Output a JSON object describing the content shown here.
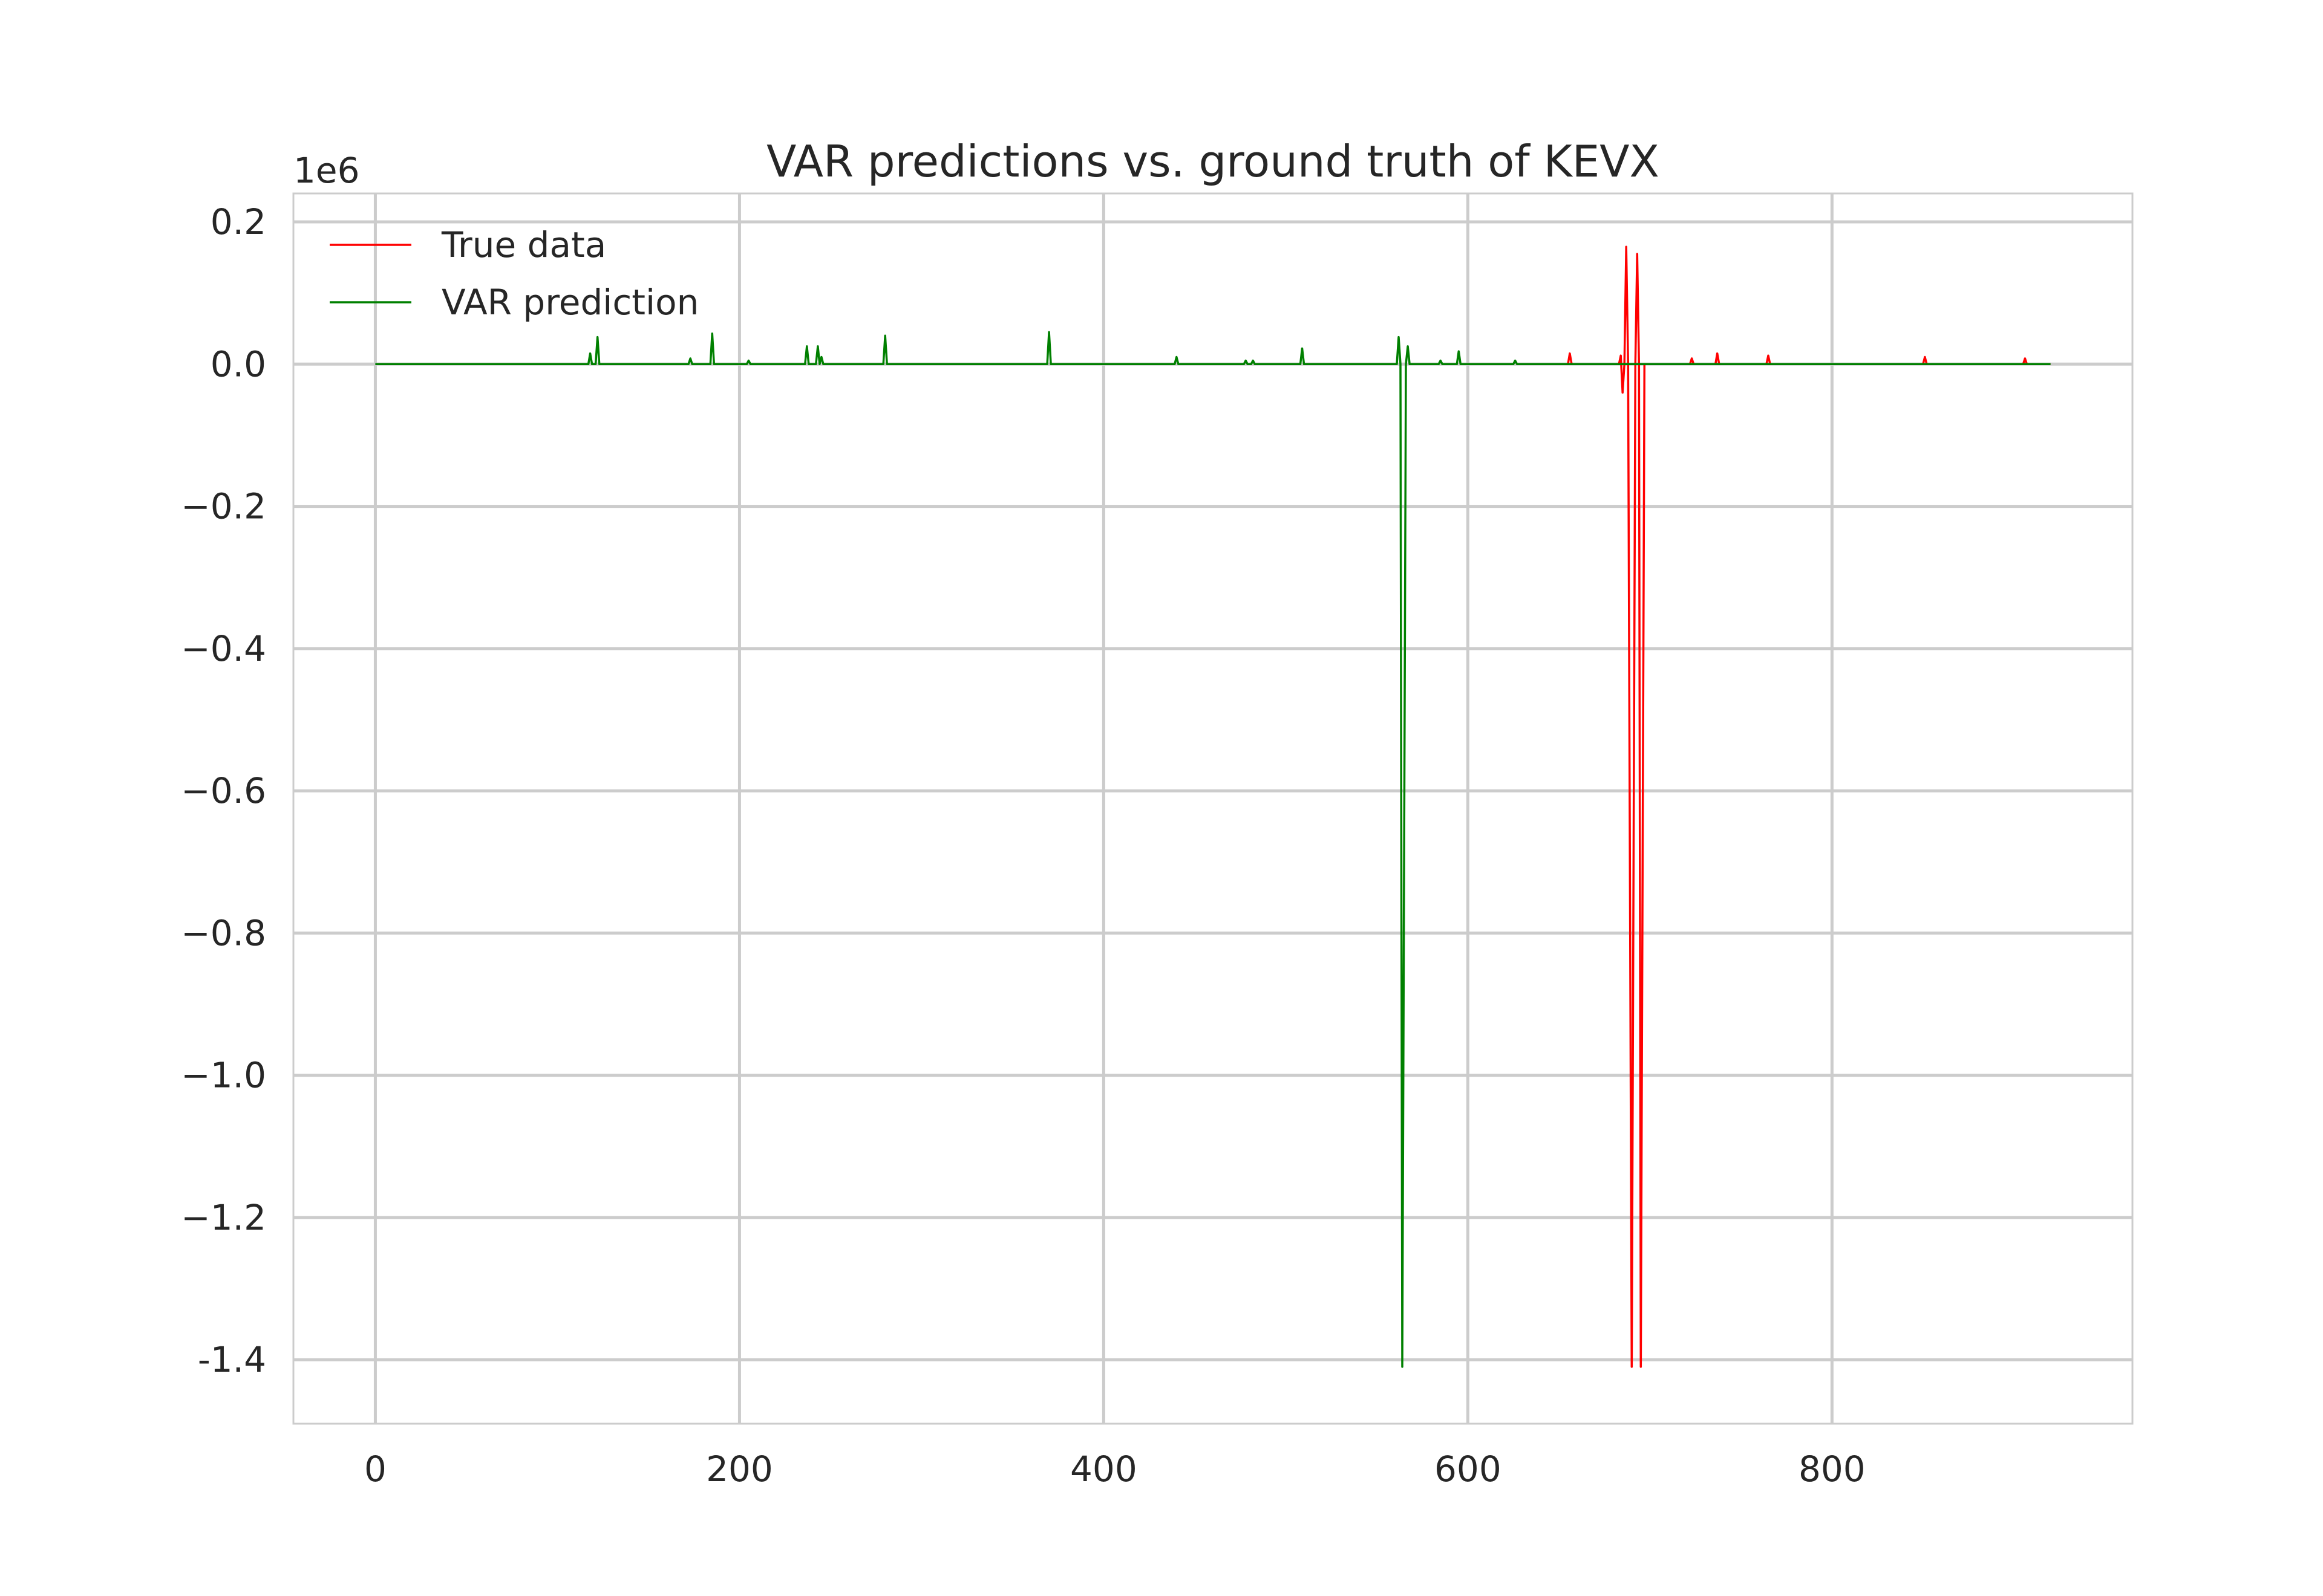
{
  "chart_data": {
    "type": "line",
    "title": "VAR predictions vs. ground truth of KEVX",
    "xlabel": "",
    "ylabel": "",
    "y_offset_label": "1e6",
    "xlim": [
      -45,
      965
    ],
    "ylim": [
      -1.49,
      0.24
    ],
    "x_ticks": [
      0,
      200,
      400,
      600,
      800
    ],
    "x_tick_labels": [
      "0",
      "200",
      "400",
      "600",
      "800"
    ],
    "y_ticks": [
      0.2,
      0.0,
      -0.2,
      -0.4,
      -0.6,
      -0.8,
      -1.0,
      -1.2,
      -1.4
    ],
    "y_tick_labels": [
      "0.2",
      "0.0",
      "−0.2",
      "−0.4",
      "−0.6",
      "−0.8",
      "−1.0",
      "−1.2",
      "-1.4"
    ],
    "grid": true,
    "legend_position": "top-left",
    "series": [
      {
        "name": "True data",
        "color": "#ff0000",
        "points": [
          [
            643,
            0.0
          ],
          [
            655,
            0.0
          ],
          [
            656,
            0.015
          ],
          [
            657,
            0.0
          ],
          [
            670,
            0.0
          ],
          [
            683,
            0.0
          ],
          [
            684,
            0.012
          ],
          [
            685,
            -0.04
          ],
          [
            686,
            0.0
          ],
          [
            687,
            0.165
          ],
          [
            688,
            0.0
          ],
          [
            690,
            -1.41
          ],
          [
            692,
            0.0
          ],
          [
            693,
            0.155
          ],
          [
            694,
            0.0
          ],
          [
            695,
            -1.41
          ],
          [
            697,
            0.0
          ],
          [
            710,
            0.0
          ],
          [
            722,
            0.0
          ],
          [
            723,
            0.008
          ],
          [
            724,
            0.0
          ],
          [
            736,
            0.0
          ],
          [
            737,
            0.015
          ],
          [
            738,
            0.0
          ],
          [
            764,
            0.0
          ],
          [
            765,
            0.012
          ],
          [
            766,
            0.0
          ],
          [
            850,
            0.0
          ],
          [
            851,
            0.01
          ],
          [
            852,
            0.0
          ],
          [
            905,
            0.0
          ],
          [
            906,
            0.008
          ],
          [
            907,
            0.0
          ],
          [
            920,
            0.0
          ]
        ]
      },
      {
        "name": "VAR prediction",
        "color": "#008000",
        "points": [
          [
            0,
            0.0
          ],
          [
            117,
            0.0
          ],
          [
            118,
            0.015
          ],
          [
            119,
            0.0
          ],
          [
            121,
            0.0
          ],
          [
            122,
            0.038
          ],
          [
            123,
            0.0
          ],
          [
            172,
            0.0
          ],
          [
            173,
            0.008
          ],
          [
            174,
            0.0
          ],
          [
            184,
            0.0
          ],
          [
            185,
            0.043
          ],
          [
            186,
            0.0
          ],
          [
            204,
            0.0
          ],
          [
            205,
            0.005
          ],
          [
            206,
            0.0
          ],
          [
            236,
            0.0
          ],
          [
            237,
            0.025
          ],
          [
            238,
            0.0
          ],
          [
            242,
            0.0
          ],
          [
            243,
            0.025
          ],
          [
            244,
            0.0
          ],
          [
            245,
            0.01
          ],
          [
            246,
            0.0
          ],
          [
            279,
            0.0
          ],
          [
            280,
            0.04
          ],
          [
            281,
            0.0
          ],
          [
            369,
            0.0
          ],
          [
            370,
            0.045
          ],
          [
            371,
            0.0
          ],
          [
            439,
            0.0
          ],
          [
            440,
            0.01
          ],
          [
            441,
            0.0
          ],
          [
            477,
            0.0
          ],
          [
            478,
            0.005
          ],
          [
            479,
            0.0
          ],
          [
            481,
            0.0
          ],
          [
            482,
            0.005
          ],
          [
            483,
            0.0
          ],
          [
            508,
            0.0
          ],
          [
            509,
            0.022
          ],
          [
            510,
            0.0
          ],
          [
            561,
            0.0
          ],
          [
            562,
            0.038
          ],
          [
            563,
            0.0
          ],
          [
            564,
            -1.41
          ],
          [
            566,
            0.0
          ],
          [
            567,
            0.025
          ],
          [
            568,
            0.0
          ],
          [
            584,
            0.0
          ],
          [
            585,
            0.005
          ],
          [
            586,
            0.0
          ],
          [
            594,
            0.0
          ],
          [
            595,
            0.018
          ],
          [
            596,
            0.0
          ],
          [
            625,
            0.0
          ],
          [
            626,
            0.005
          ],
          [
            627,
            0.0
          ],
          [
            643,
            0.0
          ],
          [
            920,
            0.0
          ]
        ]
      }
    ]
  }
}
